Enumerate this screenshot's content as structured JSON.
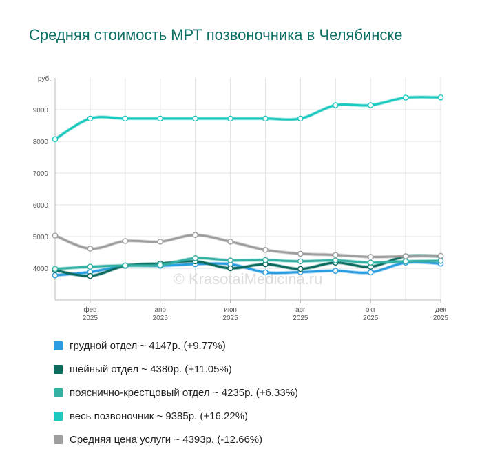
{
  "title": "Средняя стоимость МРТ позвоночника в Челябинске",
  "watermark": "© KrasotaiMedicina.ru",
  "chart_data": {
    "type": "line",
    "y_unit_label": "руб.",
    "ylim": [
      3000,
      10000
    ],
    "yticks": [
      4000,
      5000,
      6000,
      7000,
      8000,
      9000
    ],
    "x": [
      "2025-01",
      "2025-02",
      "2025-03",
      "2025-04",
      "2025-05",
      "2025-06",
      "2025-07",
      "2025-08",
      "2025-09",
      "2025-10",
      "2025-11",
      "2025-12"
    ],
    "x_tick_labels": [
      {
        "x": "2025-02",
        "month": "фев",
        "year": "2025"
      },
      {
        "x": "2025-04",
        "month": "апр",
        "year": "2025"
      },
      {
        "x": "2025-06",
        "month": "июн",
        "year": "2025"
      },
      {
        "x": "2025-08",
        "month": "авг",
        "year": "2025"
      },
      {
        "x": "2025-10",
        "month": "окт",
        "year": "2025"
      },
      {
        "x": "2025-12",
        "month": "дек",
        "year": "2025"
      }
    ],
    "grid": true,
    "legend_position": "bottom",
    "series": [
      {
        "name": "грудной отдел",
        "legend": "грудной отдел ~ 4147р. (+9.77%)",
        "color": "#2a9de0",
        "values": [
          3780,
          3880,
          4080,
          4080,
          4130,
          4130,
          3870,
          3880,
          3920,
          3870,
          4180,
          4147
        ]
      },
      {
        "name": "шейный отдел",
        "legend": "шейный отдел ~ 4380р. (+11.05%)",
        "color": "#0a6b5e",
        "values": [
          3940,
          3760,
          4080,
          4150,
          4220,
          4000,
          4130,
          3980,
          4180,
          4050,
          4380,
          4380
        ]
      },
      {
        "name": "пояснично-крестцовый отдел",
        "legend": "пояснично-крестцовый отдел ~ 4235р. (+6.33%)",
        "color": "#34b1a3",
        "values": [
          3980,
          4050,
          4090,
          4100,
          4320,
          4250,
          4260,
          4220,
          4250,
          4180,
          4220,
          4235
        ]
      },
      {
        "name": "весь позвоночник",
        "legend": "весь позвоночник ~ 9385р. (+16.22%)",
        "color": "#1cc9be",
        "values": [
          8070,
          8720,
          8720,
          8720,
          8720,
          8720,
          8720,
          8720,
          9140,
          9140,
          9380,
          9385
        ]
      },
      {
        "name": "Средняя цена услуги",
        "legend": "Средняя цена услуги ~ 4393р. (-12.66%)",
        "color": "#9e9e9e",
        "values": [
          5030,
          4620,
          4860,
          4840,
          5050,
          4840,
          4580,
          4460,
          4420,
          4360,
          4380,
          4393
        ]
      }
    ]
  }
}
